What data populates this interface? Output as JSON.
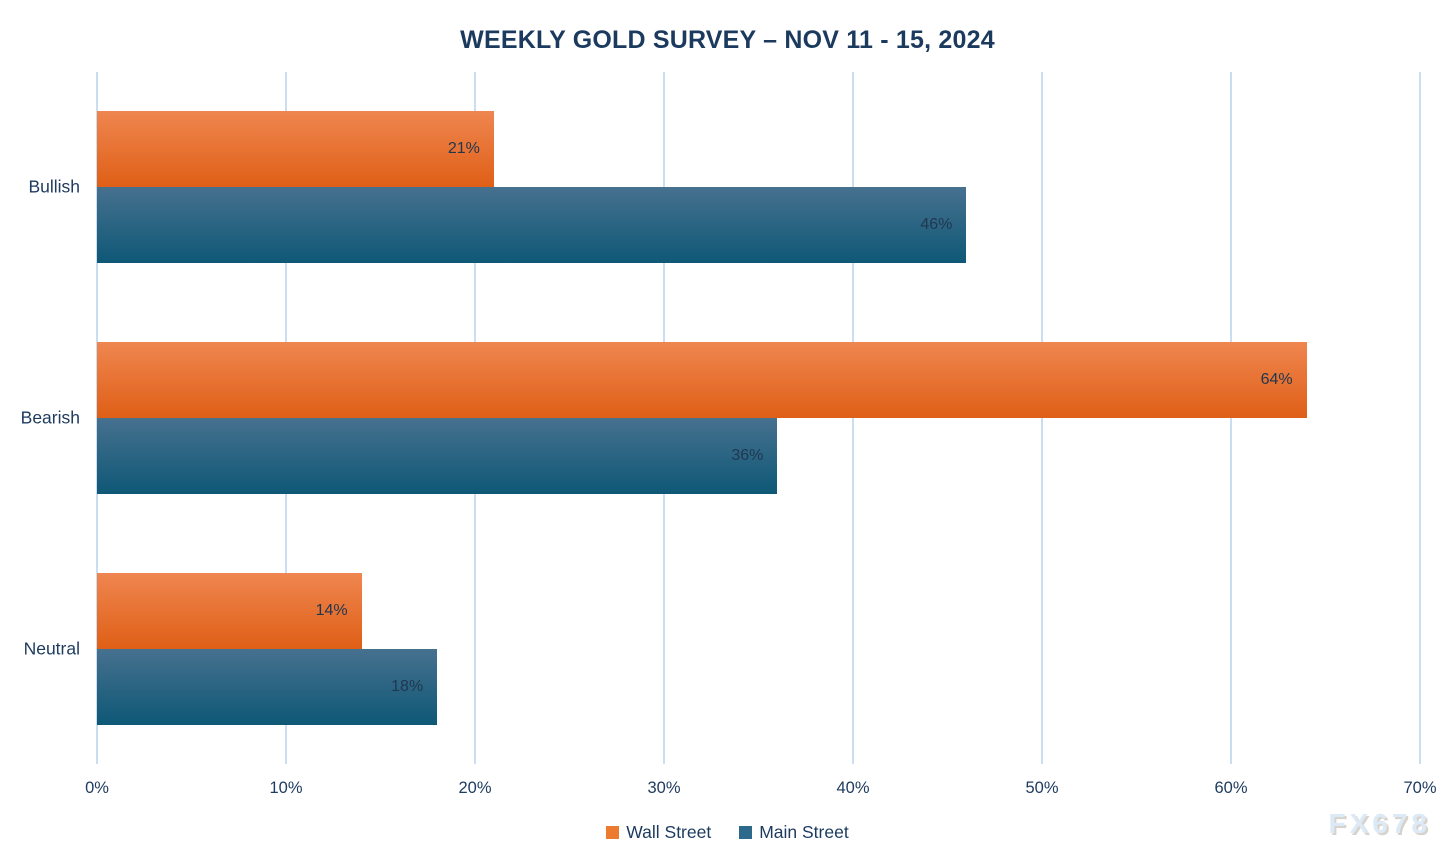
{
  "title": "WEEKLY GOLD SURVEY – NOV 11 - 15, 2024",
  "watermark": "FX678",
  "chart_data": {
    "type": "bar",
    "orientation": "horizontal",
    "title": "WEEKLY GOLD SURVEY – NOV 11 - 15, 2024",
    "categories": [
      "Bullish",
      "Bearish",
      "Neutral"
    ],
    "series": [
      {
        "name": "Wall Street",
        "values": [
          21,
          64,
          14
        ],
        "labels": [
          "21%",
          "64%",
          "14%"
        ],
        "color": "#EC7A2F",
        "gradient_top": "#EF8650",
        "gradient_bottom": "#DF5F16"
      },
      {
        "name": "Main Street",
        "values": [
          46,
          36,
          18
        ],
        "labels": [
          "46%",
          "36%",
          "18%"
        ],
        "color": "#2C698B",
        "gradient_top": "#46718F",
        "gradient_bottom": "#0E5876"
      }
    ],
    "xlabel": "",
    "ylabel": "",
    "xlim": [
      0,
      70
    ],
    "x_ticks": [
      "0%",
      "10%",
      "20%",
      "30%",
      "40%",
      "50%",
      "60%",
      "70%"
    ],
    "grid": true,
    "gridline_color": "#CBDDF1",
    "value_label_color": "#21374F",
    "axis_text_color": "#1F3C60",
    "title_color": "#1B3A5E",
    "legend_position": "bottom"
  }
}
